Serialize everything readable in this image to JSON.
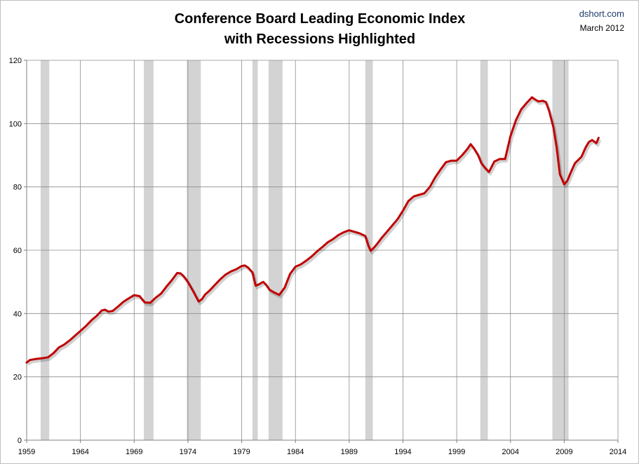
{
  "chart_data": {
    "type": "line",
    "title_line1": "Conference Board Leading Economic Index",
    "title_line2": "with Recessions Highlighted",
    "source": "dshort.com",
    "date": "March 2012",
    "xlim": [
      1959,
      2014
    ],
    "ylim": [
      0,
      120
    ],
    "xticks": [
      1959,
      1964,
      1969,
      1974,
      1979,
      1984,
      1989,
      1994,
      1999,
      2004,
      2009,
      2014
    ],
    "yticks": [
      0,
      20,
      40,
      60,
      80,
      100,
      120
    ],
    "grid": true,
    "line_color": "#c00000",
    "recession_color": "#d3d3d3",
    "recessions": [
      [
        1960.3,
        1961.1
      ],
      [
        1969.9,
        1970.8
      ],
      [
        1973.9,
        1975.2
      ],
      [
        1980.0,
        1980.5
      ],
      [
        1981.5,
        1982.8
      ],
      [
        1990.5,
        1991.2
      ],
      [
        2001.2,
        2001.9
      ],
      [
        2007.9,
        2009.4
      ]
    ],
    "series": [
      {
        "x": [
          1959.0,
          1959.3,
          1959.6,
          1960.0,
          1960.5,
          1961.0,
          1961.5,
          1962.0,
          1962.5,
          1963.0,
          1963.5,
          1964.0,
          1964.5,
          1965.0,
          1965.5,
          1966.0,
          1966.3,
          1966.6,
          1967.0,
          1967.5,
          1968.0,
          1968.5,
          1969.0,
          1969.5,
          1970.0,
          1970.5,
          1971.0,
          1971.5,
          1972.0,
          1972.5,
          1973.0,
          1973.3,
          1973.6,
          1974.0,
          1974.5,
          1975.0,
          1975.3,
          1975.6,
          1976.0,
          1976.5,
          1977.0,
          1977.5,
          1978.0,
          1978.5,
          1979.0,
          1979.3,
          1979.6,
          1980.0,
          1980.3,
          1980.6,
          1981.0,
          1981.3,
          1981.6,
          1982.0,
          1982.5,
          1983.0,
          1983.5,
          1984.0,
          1984.5,
          1985.0,
          1985.5,
          1986.0,
          1986.5,
          1987.0,
          1987.5,
          1988.0,
          1988.5,
          1989.0,
          1989.5,
          1990.0,
          1990.5,
          1990.8,
          1991.0,
          1991.3,
          1991.6,
          1992.0,
          1992.5,
          1993.0,
          1993.5,
          1994.0,
          1994.5,
          1995.0,
          1995.5,
          1996.0,
          1996.5,
          1997.0,
          1997.5,
          1998.0,
          1998.5,
          1999.0,
          1999.5,
          2000.0,
          2000.3,
          2000.6,
          2001.0,
          2001.3,
          2001.6,
          2002.0,
          2002.5,
          2003.0,
          2003.5,
          2004.0,
          2004.5,
          2005.0,
          2005.5,
          2006.0,
          2006.3,
          2006.6,
          2007.0,
          2007.3,
          2007.6,
          2008.0,
          2008.3,
          2008.6,
          2009.0,
          2009.3,
          2009.6,
          2010.0,
          2010.3,
          2010.6,
          2011.0,
          2011.3,
          2011.6,
          2012.0,
          2012.2
        ],
        "values": [
          24.5,
          25.3,
          25.5,
          25.7,
          25.9,
          26.2,
          27.5,
          29.3,
          30.2,
          31.5,
          33.0,
          34.5,
          36.0,
          37.8,
          39.2,
          41.0,
          41.2,
          40.6,
          40.8,
          42.2,
          43.7,
          44.8,
          45.8,
          45.5,
          43.5,
          43.4,
          45.0,
          46.3,
          48.5,
          50.5,
          52.8,
          52.7,
          51.8,
          50.0,
          47.0,
          43.8,
          44.5,
          46.0,
          47.2,
          49.0,
          50.8,
          52.3,
          53.3,
          54.0,
          55.0,
          55.2,
          54.5,
          53.0,
          48.8,
          49.2,
          50.0,
          49.0,
          47.5,
          46.7,
          45.9,
          48.2,
          52.5,
          54.8,
          55.5,
          56.7,
          58.0,
          59.6,
          61.0,
          62.5,
          63.5,
          64.8,
          65.7,
          66.3,
          65.8,
          65.3,
          64.5,
          61.3,
          59.8,
          60.8,
          62.0,
          63.8,
          65.8,
          67.8,
          69.8,
          72.5,
          75.5,
          77.0,
          77.5,
          78.0,
          80.0,
          83.0,
          85.5,
          87.8,
          88.3,
          88.3,
          90.0,
          92.0,
          93.5,
          92.2,
          90.0,
          87.5,
          86.2,
          84.7,
          88.0,
          88.8,
          88.8,
          96.0,
          101.0,
          104.5,
          106.5,
          108.3,
          107.6,
          107.0,
          107.2,
          106.8,
          104.0,
          98.8,
          92.5,
          84.0,
          80.8,
          82.0,
          84.5,
          87.5,
          88.5,
          89.5,
          92.5,
          94.2,
          94.8,
          93.8,
          95.5
        ]
      }
    ]
  }
}
